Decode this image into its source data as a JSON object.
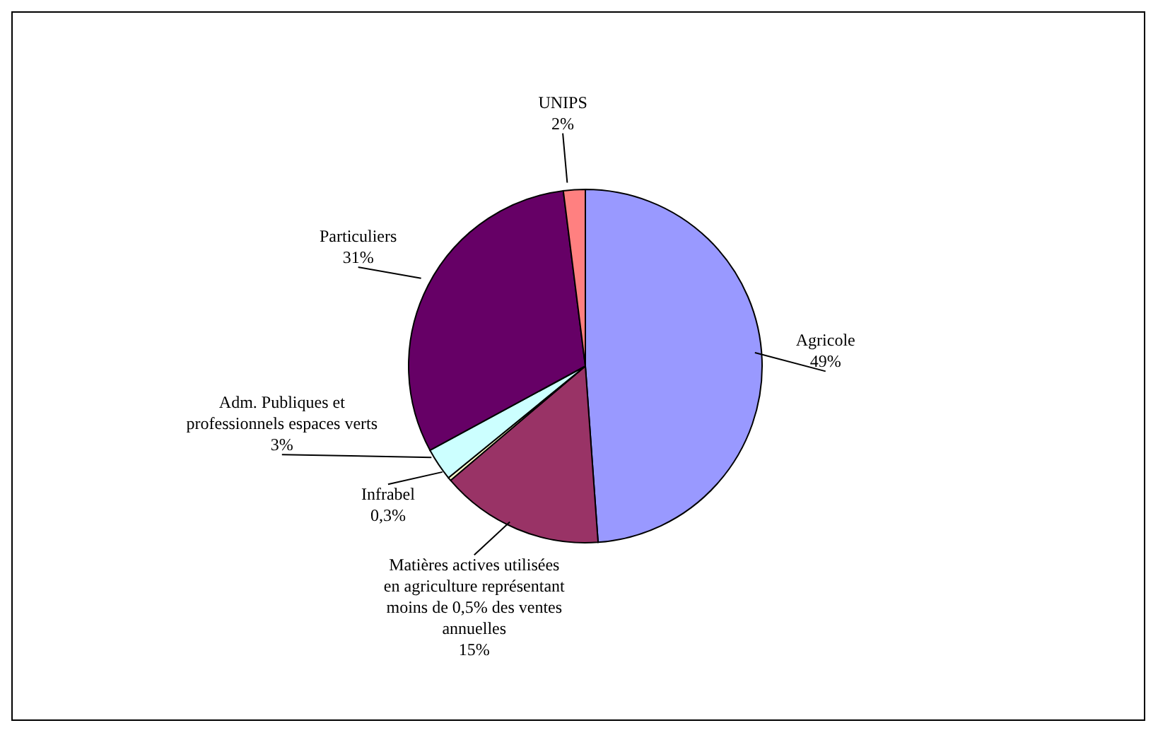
{
  "chart_data": {
    "type": "pie",
    "categories": [
      "Agricole",
      "Matières actives utilisées en agriculture représentant moins de 0,5% des ventes annuelles",
      "Infrabel",
      "Adm. Publiques et professionnels espaces verts",
      "Particuliers",
      "UNIPS"
    ],
    "values": [
      49,
      15,
      0.3,
      3,
      31,
      2
    ],
    "value_labels": [
      "49%",
      "15%",
      "0,3%",
      "3%",
      "31%",
      "2%"
    ],
    "colors": [
      "#9999ff",
      "#993366",
      "#ffffcc",
      "#ccffff",
      "#660066",
      "#ff8080"
    ],
    "legend": false
  }
}
